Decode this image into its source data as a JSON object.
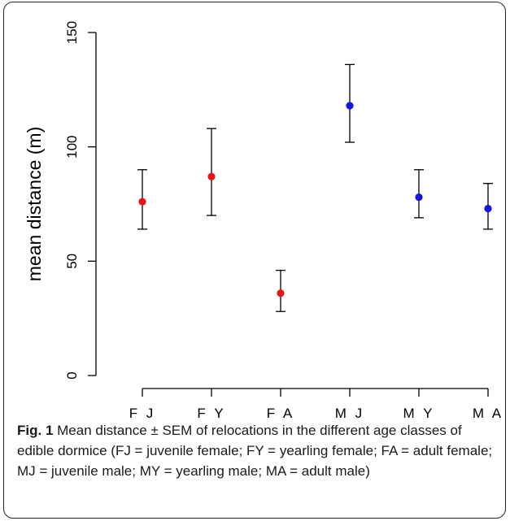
{
  "chart_data": {
    "type": "scatter",
    "subtype": "errorbar",
    "categories": [
      "F J",
      "F Y",
      "F A",
      "M J",
      "M Y",
      "M A"
    ],
    "series": [
      {
        "values": [
          76,
          87,
          36,
          null,
          null,
          null
        ],
        "upper": [
          90,
          108,
          46,
          null,
          null,
          null
        ],
        "lower": [
          64,
          70,
          28,
          null,
          null,
          null
        ],
        "color": "#e8141b"
      },
      {
        "values": [
          null,
          null,
          null,
          118,
          78,
          73
        ],
        "upper": [
          null,
          null,
          null,
          136,
          90,
          84
        ],
        "lower": [
          null,
          null,
          null,
          102,
          69,
          64
        ],
        "color": "#1616e0"
      }
    ],
    "ylabel": "mean distance (m)",
    "xlabel": "",
    "ylim": [
      0,
      150
    ],
    "yticks": [
      "0",
      "50",
      "100",
      "150"
    ],
    "grid": false
  },
  "caption": {
    "label": "Fig. 1",
    "text": " Mean distance ± SEM of relocations in the different age classes of edible dormice (FJ = juvenile female; FY = yearling female; FA = adult female; MJ = juvenile male; MY = yearling male; MA = adult male)"
  }
}
